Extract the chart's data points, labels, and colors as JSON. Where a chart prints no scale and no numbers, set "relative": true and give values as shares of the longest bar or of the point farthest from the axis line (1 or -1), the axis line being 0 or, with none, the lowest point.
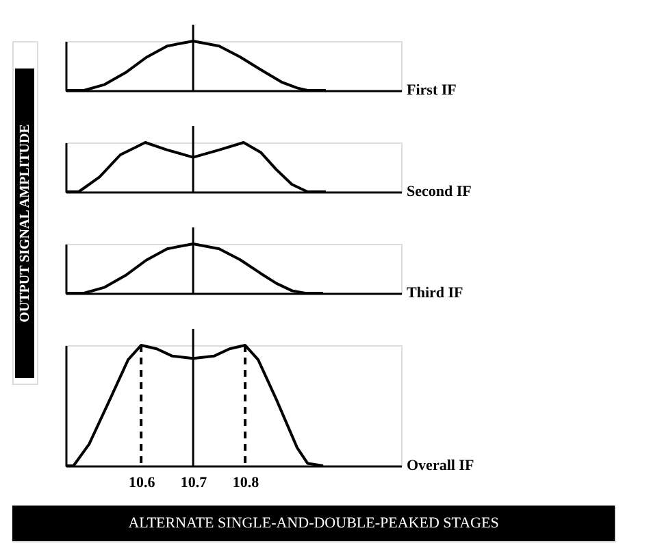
{
  "chart_data": [
    {
      "type": "line",
      "relative": true,
      "xlim": [
        10.455,
        11.1
      ],
      "xticks": [
        10.6,
        10.7,
        10.8
      ],
      "tick_labels": false,
      "grid": false,
      "ref_lines": [
        {
          "axis": "x",
          "value": 10.7,
          "color": "#000000",
          "line_style": "solid"
        }
      ],
      "series": [
        {
          "name": "First IF",
          "color": "#000000",
          "x": [
            10.455,
            10.49,
            10.53,
            10.57,
            10.61,
            10.65,
            10.7,
            10.75,
            10.79,
            10.83,
            10.87,
            10.9,
            10.92,
            10.955
          ],
          "values": [
            0,
            0,
            0.12,
            0.36,
            0.67,
            0.9,
            1,
            0.9,
            0.68,
            0.42,
            0.17,
            0.05,
            0,
            0
          ]
        }
      ]
    },
    {
      "type": "line",
      "relative": true,
      "xlim": [
        10.455,
        11.1
      ],
      "xticks": [
        10.6,
        10.7,
        10.8
      ],
      "tick_labels": false,
      "grid": false,
      "ref_lines": [
        {
          "axis": "x",
          "value": 10.7,
          "color": "#000000",
          "line_style": "solid"
        }
      ],
      "series": [
        {
          "name": "Second IF",
          "color": "#000000",
          "x": [
            10.455,
            10.48,
            10.52,
            10.56,
            10.608,
            10.65,
            10.7,
            10.75,
            10.797,
            10.83,
            10.86,
            10.89,
            10.92,
            10.955
          ],
          "values": [
            0,
            0,
            0.3,
            0.75,
            1,
            0.85,
            0.7,
            0.85,
            1,
            0.8,
            0.45,
            0.15,
            0,
            0
          ]
        }
      ]
    },
    {
      "type": "line",
      "relative": true,
      "xlim": [
        10.455,
        11.1
      ],
      "xticks": [
        10.6,
        10.7,
        10.8
      ],
      "tick_labels": false,
      "grid": false,
      "ref_lines": [
        {
          "axis": "x",
          "value": 10.7,
          "color": "#000000",
          "line_style": "solid"
        }
      ],
      "series": [
        {
          "name": "Third IF",
          "color": "#000000",
          "x": [
            10.455,
            10.49,
            10.53,
            10.57,
            10.61,
            10.65,
            10.7,
            10.75,
            10.79,
            10.83,
            10.86,
            10.89,
            10.915,
            10.95
          ],
          "values": [
            0,
            0,
            0.12,
            0.36,
            0.67,
            0.9,
            1,
            0.9,
            0.68,
            0.4,
            0.2,
            0.05,
            0,
            0
          ]
        }
      ]
    },
    {
      "type": "line",
      "relative": true,
      "xlim": [
        10.455,
        11.1
      ],
      "xticks": [
        10.6,
        10.7,
        10.8
      ],
      "tick_labels": "x",
      "grid": false,
      "ylabel": "OUTPUT SIGNAL AMPLITUDE",
      "title": "ALTERNATE SINGLE-AND-DOUBLE-PEAKED STAGES",
      "ref_lines": [
        {
          "axis": "x",
          "value": 10.7,
          "color": "#000000",
          "line_style": "solid"
        },
        {
          "axis": "x",
          "value": 10.6,
          "color": "#000000",
          "line_style": "dashed"
        },
        {
          "axis": "x",
          "value": 10.8,
          "color": "#000000",
          "line_style": "dashed"
        }
      ],
      "series": [
        {
          "name": "Overall IF",
          "color": "#000000",
          "x": [
            10.455,
            10.47,
            10.5,
            10.54,
            10.575,
            10.6,
            10.63,
            10.66,
            10.7,
            10.74,
            10.77,
            10.8,
            10.825,
            10.86,
            10.9,
            10.92,
            10.95
          ],
          "values": [
            0,
            0,
            0.18,
            0.55,
            0.88,
            1,
            0.97,
            0.91,
            0.89,
            0.91,
            0.97,
            1,
            0.88,
            0.55,
            0.15,
            0.02,
            0
          ]
        }
      ]
    }
  ]
}
